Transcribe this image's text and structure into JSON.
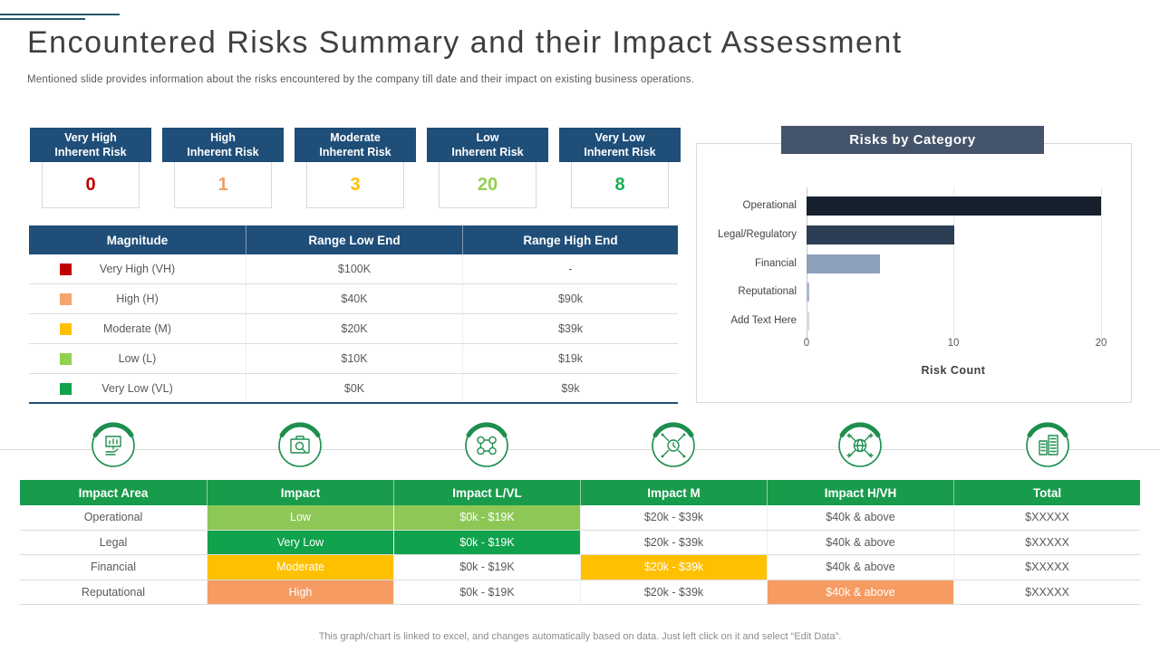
{
  "slide": {
    "title": "Encountered Risks Summary and their Impact Assessment",
    "subtitle": "Mentioned slide provides information about the risks encountered by the company till date and their impact on existing business operations.",
    "footer_note": "This graph/chart is linked to excel, and changes automatically based on data. Just left click on it and select “Edit Data”."
  },
  "risk_cards": [
    {
      "title_lines": [
        "Very High",
        "Inherent Risk"
      ],
      "value": "0",
      "value_color": "#C00000"
    },
    {
      "title_lines": [
        "High",
        "Inherent Risk"
      ],
      "value": "1",
      "value_color": "#F0A06A"
    },
    {
      "title_lines": [
        "Moderate",
        "Inherent Risk"
      ],
      "value": "3",
      "value_color": "#FFC000"
    },
    {
      "title_lines": [
        "Low",
        "Inherent Risk"
      ],
      "value": "20",
      "value_color": "#92D050"
    },
    {
      "title_lines": [
        "Very Low",
        "Inherent Risk"
      ],
      "value": "8",
      "value_color": "#1CAD53"
    }
  ],
  "magnitude_table": {
    "headers": [
      "Magnitude",
      "Range Low End",
      "Range High End"
    ],
    "rows": [
      {
        "swatch_color": "#C00000",
        "magnitude": "Very High (VH)",
        "low": "$100K",
        "high": "-"
      },
      {
        "swatch_color": "#F4A46C",
        "magnitude": "High  (H)",
        "low": "$40K",
        "high": "$90k"
      },
      {
        "swatch_color": "#FFC000",
        "magnitude": "Moderate  (M)",
        "low": "$20K",
        "high": "$39k"
      },
      {
        "swatch_color": "#92D050",
        "magnitude": "Low  (L)",
        "low": "$10K",
        "high": "$19k"
      },
      {
        "swatch_color": "#10A24C",
        "magnitude": "Very Low  (VL)",
        "low": "$0K",
        "high": "$9k"
      }
    ]
  },
  "chart_data": {
    "type": "bar",
    "orientation": "horizontal",
    "title": "Risks by Category",
    "xlabel": "Risk Count",
    "categories": [
      "Operational",
      "Legal/Regulatory",
      "Financial",
      "Reputational",
      "Add Text Here"
    ],
    "values": [
      20,
      10,
      5,
      0.2,
      0.15
    ],
    "bar_colors": [
      "#161F2C",
      "#2C3E53",
      "#8CA0BC",
      "#AEB9CC",
      "#D9D9D9"
    ],
    "xlim": [
      0,
      20
    ],
    "xticks": [
      0,
      10,
      20
    ],
    "legend": "none",
    "grid": "vertical-light",
    "title_banner_color": "#44546A"
  },
  "impact_icons": [
    "chart-presentation-hand-icon",
    "briefcase-audit-icon",
    "linked-gears-icon",
    "target-clock-icon",
    "global-network-icon",
    "buildings-data-icon"
  ],
  "impact_table": {
    "headers": [
      "Impact Area",
      "Impact",
      "Impact L/VL",
      "Impact M",
      "Impact H/VH",
      "Total"
    ],
    "rows": [
      {
        "cells": [
          {
            "text": "Operational"
          },
          {
            "text": "Low",
            "bg": "#8DC857"
          },
          {
            "text": "$0k - $19K",
            "bg": "#8DC857"
          },
          {
            "text": "$20k - $39k"
          },
          {
            "text": "$40k & above"
          },
          {
            "text": "$XXXXX"
          }
        ]
      },
      {
        "cells": [
          {
            "text": "Legal"
          },
          {
            "text": "Very Low",
            "bg": "#10A24C"
          },
          {
            "text": "$0k - $19K",
            "bg": "#10A24C"
          },
          {
            "text": "$20k - $39k"
          },
          {
            "text": "$40k & above"
          },
          {
            "text": "$XXXXX"
          }
        ]
      },
      {
        "cells": [
          {
            "text": "Financial"
          },
          {
            "text": "Moderate",
            "bg": "#FFC000"
          },
          {
            "text": "$0k - $19K"
          },
          {
            "text": "$20k - $39k",
            "bg": "#FFC000"
          },
          {
            "text": "$40k & above"
          },
          {
            "text": "$XXXXX"
          }
        ]
      },
      {
        "cells": [
          {
            "text": "Reputational"
          },
          {
            "text": "High",
            "bg": "#F69B61"
          },
          {
            "text": "$0k - $19K"
          },
          {
            "text": "$20k - $39k"
          },
          {
            "text": "$40k & above",
            "bg": "#F69B61"
          },
          {
            "text": "$XXXXX"
          }
        ]
      }
    ]
  },
  "colors": {
    "header_blue": "#1F4E79",
    "banner_slate": "#44546A",
    "header_green": "#189B4B",
    "icon_green": "#1E8E4E",
    "light_border": "#D9D9D9"
  }
}
